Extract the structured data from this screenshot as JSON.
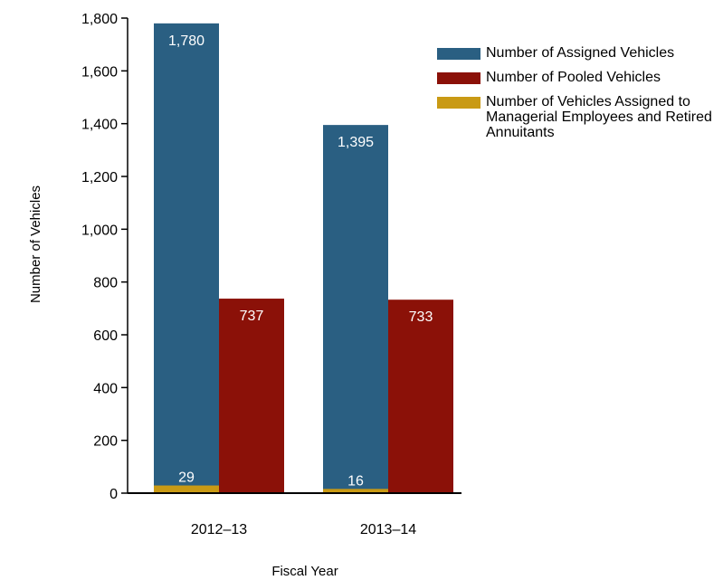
{
  "chart_data": {
    "type": "bar",
    "title": "",
    "xlabel": "Fiscal Year",
    "ylabel": "Number of Vehicles",
    "ylim": [
      0,
      1800
    ],
    "yticks": [
      0,
      200,
      400,
      600,
      800,
      1000,
      1200,
      1400,
      1600,
      1800
    ],
    "ytick_labels": [
      "0",
      "200",
      "400",
      "600",
      "800",
      "1,000",
      "1,200",
      "1,400",
      "1,600",
      "1,800"
    ],
    "grid": false,
    "legend_position": "top-right",
    "categories": [
      "2012–13",
      "2013–14"
    ],
    "series": [
      {
        "name": "Number of Assigned Vehicles",
        "color": "#2a5f82",
        "values": [
          1780,
          1395
        ],
        "labels": [
          "1,780",
          "1,395"
        ]
      },
      {
        "name": "Number of Pooled Vehicles",
        "color": "#8b1108",
        "values": [
          737,
          733
        ],
        "labels": [
          "737",
          "733"
        ]
      },
      {
        "name": "Number of Vehicles Assigned to Managerial Employees and Retired Annuitants",
        "color": "#c99a14",
        "values": [
          29,
          16
        ],
        "labels": [
          "29",
          "16"
        ]
      }
    ]
  }
}
